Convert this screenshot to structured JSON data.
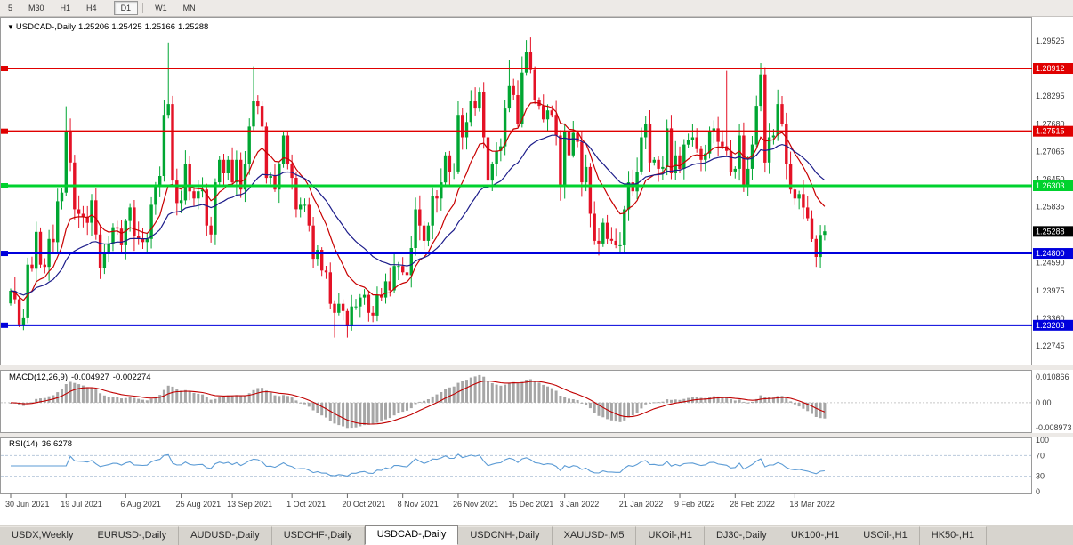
{
  "toolbar": {
    "items": [
      {
        "type": "button",
        "label": "5",
        "active": false
      },
      {
        "type": "button",
        "label": "M30",
        "active": false
      },
      {
        "type": "button",
        "label": "H1",
        "active": false
      },
      {
        "type": "button",
        "label": "H4",
        "active": false
      },
      {
        "type": "separator"
      },
      {
        "type": "button",
        "label": "D1",
        "active": true
      },
      {
        "type": "separator"
      },
      {
        "type": "button",
        "label": "W1",
        "active": false
      },
      {
        "type": "button",
        "label": "MN",
        "active": false
      }
    ]
  },
  "chart": {
    "title": {
      "symbol": "USDCAD-,Daily",
      "open": "1.25206",
      "high": "1.25425",
      "low": "1.25166",
      "close": "1.25288"
    },
    "colors": {
      "up": "#00a632",
      "down": "#e41226",
      "ma_fast": "#c80000",
      "ma_slow": "#1c1c8a",
      "background": "#ffffff"
    },
    "price_axis_ticks": [
      "1.29525",
      "1.28295",
      "1.27680",
      "1.27065",
      "1.26450",
      "1.25835",
      "1.24590",
      "1.23975",
      "1.23360",
      "1.22745"
    ],
    "horizontal_lines": [
      {
        "label": "1.28912",
        "value": 1.28912,
        "color": "#e00000",
        "width": 2
      },
      {
        "label": "1.27515",
        "value": 1.27515,
        "color": "#e00000",
        "width": 2
      },
      {
        "label": "1.26303",
        "value": 1.26303,
        "color": "#00d22e",
        "width": 3
      },
      {
        "label": "1.24800",
        "value": 1.248,
        "color": "#0000dc",
        "width": 2
      },
      {
        "label": "1.23203",
        "value": 1.23203,
        "color": "#0000dc",
        "width": 2
      }
    ],
    "current_price": {
      "label": "1.25288",
      "value": 1.25288,
      "bg": "#000000",
      "text": "#ffffff"
    },
    "date_axis": [
      {
        "bar": 0,
        "label": "30 Jun 2021"
      },
      {
        "bar": 13,
        "label": "19 Jul 2021"
      },
      {
        "bar": 27,
        "label": "6 Aug 2021"
      },
      {
        "bar": 40,
        "label": "25 Aug 2021"
      },
      {
        "bar": 52,
        "label": "13 Sep 2021"
      },
      {
        "bar": 66,
        "label": "1 Oct 2021"
      },
      {
        "bar": 79,
        "label": "20 Oct 2021"
      },
      {
        "bar": 92,
        "label": "8 Nov 2021"
      },
      {
        "bar": 105,
        "label": "26 Nov 2021"
      },
      {
        "bar": 118,
        "label": "15 Dec 2021"
      },
      {
        "bar": 130,
        "label": "3 Jan 2022"
      },
      {
        "bar": 144,
        "label": "21 Jan 2022"
      },
      {
        "bar": 157,
        "label": "9 Feb 2022"
      },
      {
        "bar": 170,
        "label": "28 Feb 2022"
      },
      {
        "bar": 184,
        "label": "18 Mar 2022"
      }
    ],
    "moving_averages": [
      {
        "period": 12,
        "color": "#c80000"
      },
      {
        "period": 30,
        "color": "#1c1c8a"
      }
    ],
    "candles": {
      "closes": [
        1.2397,
        1.2378,
        1.2322,
        1.2336,
        1.2455,
        1.2446,
        1.2528,
        1.2455,
        1.245,
        1.2512,
        1.2505,
        1.2596,
        1.2615,
        1.2752,
        1.2682,
        1.2578,
        1.2568,
        1.2562,
        1.2548,
        1.2598,
        1.2522,
        1.2448,
        1.2478,
        1.2502,
        1.2538,
        1.2535,
        1.2498,
        1.2552,
        1.2582,
        1.2518,
        1.2512,
        1.2505,
        1.2512,
        1.2588,
        1.2628,
        1.2652,
        1.2788,
        1.2812,
        1.2642,
        1.2592,
        1.2598,
        1.2678,
        1.2618,
        1.2602,
        1.2618,
        1.2622,
        1.2542,
        1.2522,
        1.2638,
        1.2688,
        1.2658,
        1.2688,
        1.2638,
        1.2688,
        1.2622,
        1.2678,
        1.2762,
        1.2818,
        1.2808,
        1.2762,
        1.2648,
        1.2652,
        1.2622,
        1.2678,
        1.2742,
        1.2678,
        1.2648,
        1.2578,
        1.2588,
        1.2588,
        1.2542,
        1.2468,
        1.2488,
        1.2442,
        1.2438,
        1.2368,
        1.2348,
        1.2368,
        1.2352,
        1.2318,
        1.2362,
        1.2362,
        1.2382,
        1.2388,
        1.2348,
        1.2342,
        1.2388,
        1.2382,
        1.2418,
        1.2398,
        1.2452,
        1.2452,
        1.2438,
        1.2432,
        1.2492,
        1.2578,
        1.2542,
        1.2508,
        1.2542,
        1.2608,
        1.2602,
        1.2638,
        1.2698,
        1.2662,
        1.2662,
        1.2788,
        1.2738,
        1.2772,
        1.2818,
        1.2802,
        1.2838,
        1.2738,
        1.2642,
        1.2678,
        1.2708,
        1.2718,
        1.2802,
        1.2852,
        1.2832,
        1.2768,
        1.2882,
        1.2928,
        1.2888,
        1.2822,
        1.2808,
        1.2778,
        1.2798,
        1.2788,
        1.2742,
        1.2632,
        1.2752,
        1.2698,
        1.2748,
        1.2728,
        1.2638,
        1.2672,
        1.2568,
        1.2508,
        1.2502,
        1.2548,
        1.2512,
        1.2508,
        1.2498,
        1.2498,
        1.2578,
        1.2638,
        1.2618,
        1.2662,
        1.2738,
        1.2768,
        1.2682,
        1.2688,
        1.2668,
        1.2672,
        1.2758,
        1.2658,
        1.2698,
        1.2668,
        1.2722,
        1.2732,
        1.2738,
        1.2712,
        1.2688,
        1.2702,
        1.2752,
        1.2758,
        1.2728,
        1.2718,
        1.2708,
        1.2662,
        1.2668,
        1.2742,
        1.2628,
        1.2668,
        1.2722,
        1.2808,
        1.2878,
        1.2682,
        1.2738,
        1.2742,
        1.2812,
        1.2768,
        1.2678,
        1.2622,
        1.2602,
        1.2612,
        1.2582,
        1.2558,
        1.2512,
        1.2472,
        1.2521,
        1.2529
      ],
      "wick_overrides": {
        "13": [
          0.0055,
          0.0008
        ],
        "37": [
          0.0137,
          0.0008
        ],
        "57": [
          0.0078,
          0.0008
        ],
        "76": [
          0.0008,
          0.0055
        ],
        "117": [
          0.0058,
          0.0008
        ],
        "120": [
          0.0036,
          0.0008
        ],
        "129": [
          0.0012,
          0.0035
        ],
        "168": [
          0.0168,
          0.001
        ],
        "176": [
          0.0025,
          0.0012
        ],
        "191": [
          0.0014,
          0.0012
        ]
      }
    }
  },
  "macd": {
    "name": "MACD(12,26,9)",
    "value_main": "-0.004927",
    "value_signal": "-0.002274",
    "params": {
      "fast": 12,
      "slow": 26,
      "signal": 9
    },
    "axis_labels": [
      "0.010866",
      "0.00",
      "-0.008973"
    ],
    "histogram_color": "#a6a6a6",
    "signal_color": "#c00000"
  },
  "rsi": {
    "name": "RSI(14)",
    "value": "36.6278",
    "period": 14,
    "levels": [
      100,
      70,
      30,
      0
    ],
    "dashed_levels": [
      70,
      30
    ],
    "line_color": "#5b9bd5"
  },
  "tabs": [
    {
      "label": "USDX,Weekly",
      "active": false
    },
    {
      "label": "EURUSD-,Daily",
      "active": false
    },
    {
      "label": "AUDUSD-,Daily",
      "active": false
    },
    {
      "label": "USDCHF-,Daily",
      "active": false
    },
    {
      "label": "USDCAD-,Daily",
      "active": true
    },
    {
      "label": "USDCNH-,Daily",
      "active": false
    },
    {
      "label": "XAUUSD-,M5",
      "active": false
    },
    {
      "label": "UKOil-,H1",
      "active": false
    },
    {
      "label": "DJ30-,Daily",
      "active": false
    },
    {
      "label": "UK100-,H1",
      "active": false
    },
    {
      "label": "USOil-,H1",
      "active": false
    },
    {
      "label": "HK50-,H1",
      "active": false
    }
  ]
}
